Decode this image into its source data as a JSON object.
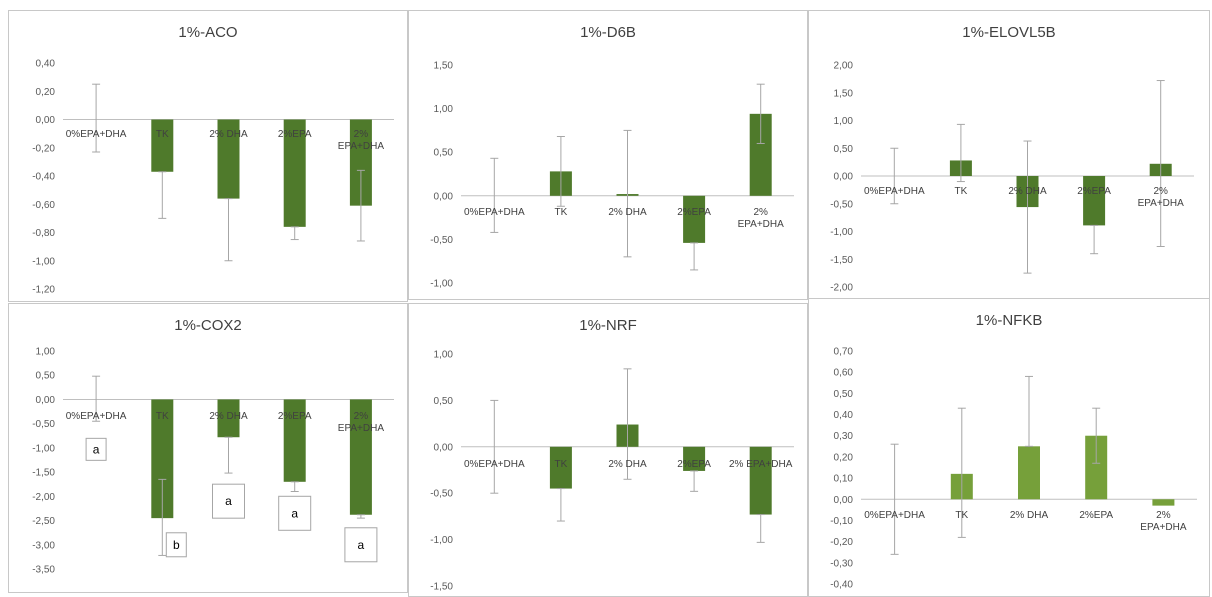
{
  "colors": {
    "bar_dark": "#4f7a2b",
    "bar_light": "#76a03a",
    "error_bar": "#a6a6a6",
    "axis": "#bfbfbf",
    "text": "#595959"
  },
  "chart_data": [
    {
      "type": "bar",
      "title": "1%-ACO",
      "categories": [
        "0%EPA+DHA",
        "TK",
        "2% DHA",
        "2%EPA",
        "2%\nEPA+DHA"
      ],
      "values": [
        0.0,
        -0.37,
        -0.56,
        -0.76,
        -0.61
      ],
      "err_low": [
        -0.23,
        -0.7,
        -1.0,
        -0.85,
        -0.86
      ],
      "err_high": [
        0.25,
        -0.37,
        -0.56,
        -0.76,
        -0.36
      ],
      "ylim": [
        -1.2,
        0.4
      ],
      "ystep": 0.2,
      "tick_labels": [
        "0,40",
        "0,20",
        "0,00",
        "-0,20",
        "-0,40",
        "-0,60",
        "-0,80",
        "-1,00",
        "-1,20"
      ],
      "bar_color": "#4f7a2b",
      "annotations": []
    },
    {
      "type": "bar",
      "title": "1%-D6B",
      "categories": [
        "0%EPA+DHA",
        "TK",
        "2% DHA",
        "2%EPA",
        "2%\nEPA+DHA"
      ],
      "values": [
        0.0,
        0.28,
        0.02,
        -0.54,
        0.94
      ],
      "err_low": [
        -0.42,
        -0.12,
        -0.7,
        -0.85,
        0.6
      ],
      "err_high": [
        0.43,
        0.68,
        0.75,
        -0.54,
        1.28
      ],
      "ylim": [
        -1.0,
        1.5
      ],
      "ystep": 0.5,
      "tick_labels": [
        "1,50",
        "1,00",
        "0,50",
        "0,00",
        "-0,50",
        "-1,00"
      ],
      "bar_color": "#4f7a2b",
      "annotations": []
    },
    {
      "type": "bar",
      "title": "1%-ELOVL5B",
      "categories": [
        "0%EPA+DHA",
        "TK",
        "2% DHA",
        "2%EPA",
        "2%\nEPA+DHA"
      ],
      "values": [
        0.0,
        0.28,
        -0.56,
        -0.89,
        0.22
      ],
      "err_low": [
        -0.5,
        -0.1,
        -1.75,
        -1.4,
        -1.27
      ],
      "err_high": [
        0.5,
        0.93,
        0.63,
        -0.89,
        1.72
      ],
      "ylim": [
        -2.0,
        2.0
      ],
      "ystep": 0.5,
      "tick_labels": [
        "2,00",
        "1,50",
        "1,00",
        "0,50",
        "0,00",
        "-0,50",
        "-1,00",
        "-1,50",
        "-2,00"
      ],
      "bar_color": "#4f7a2b",
      "annotations": []
    },
    {
      "type": "bar",
      "title": "1%-COX2",
      "categories": [
        "0%EPA+DHA",
        "TK",
        "2% DHA",
        "2%EPA",
        "2%\nEPA+DHA"
      ],
      "values": [
        0.0,
        -2.45,
        -0.78,
        -1.7,
        -2.38
      ],
      "err_low": [
        -0.45,
        -3.22,
        -1.52,
        -1.9,
        -2.45
      ],
      "err_high": [
        0.48,
        -1.65,
        -0.78,
        -1.7,
        -2.38
      ],
      "ylim": [
        -3.5,
        1.0
      ],
      "ystep": 0.5,
      "tick_labels": [
        "1,00",
        "0,50",
        "0,00",
        "-0,50",
        "-1,00",
        "-1,50",
        "-2,00",
        "-2,50",
        "-3,00",
        "-3,50"
      ],
      "bar_color": "#4f7a2b",
      "annotations": [
        {
          "label": "a",
          "x_index": 0,
          "y": -1.03
        },
        {
          "label": "b",
          "x_index": 1,
          "y": -3.0
        },
        {
          "label": "a",
          "x_index": 2,
          "y": -2.1
        },
        {
          "label": "a",
          "x_index": 3,
          "y": -2.35
        },
        {
          "label": "a",
          "x_index": 4,
          "y": -3.0
        }
      ]
    },
    {
      "type": "bar",
      "title": "1%-NRF",
      "categories": [
        "0%EPA+DHA",
        "TK",
        "2% DHA",
        "2%EPA",
        "2% EPA+DHA"
      ],
      "values": [
        0.0,
        -0.45,
        0.24,
        -0.26,
        -0.73
      ],
      "err_low": [
        -0.5,
        -0.8,
        -0.35,
        -0.48,
        -1.03
      ],
      "err_high": [
        0.5,
        -0.45,
        0.84,
        -0.26,
        -0.73
      ],
      "ylim": [
        -1.5,
        1.0
      ],
      "ystep": 0.5,
      "tick_labels": [
        "1,00",
        "0,50",
        "0,00",
        "-0,50",
        "-1,00",
        "-1,50"
      ],
      "bar_color": "#4f7a2b",
      "annotations": []
    },
    {
      "type": "bar",
      "title": "1%-NFKB",
      "categories": [
        "0%EPA+DHA",
        "TK",
        "2% DHA",
        "2%EPA",
        "2%\nEPA+DHA"
      ],
      "values": [
        0.0,
        0.12,
        0.25,
        0.3,
        -0.03
      ],
      "err_low": [
        -0.26,
        -0.18,
        0.25,
        0.17,
        -0.03
      ],
      "err_high": [
        0.26,
        0.43,
        0.58,
        0.43,
        -0.03
      ],
      "ylim": [
        -0.4,
        0.7
      ],
      "ystep": 0.1,
      "tick_labels": [
        "0,70",
        "0,60",
        "0,50",
        "0,40",
        "0,30",
        "0,20",
        "0,10",
        "0,00",
        "-0,10",
        "-0,20",
        "-0,30",
        "-0,40"
      ],
      "bar_color": "#76a03a",
      "annotations": []
    }
  ]
}
